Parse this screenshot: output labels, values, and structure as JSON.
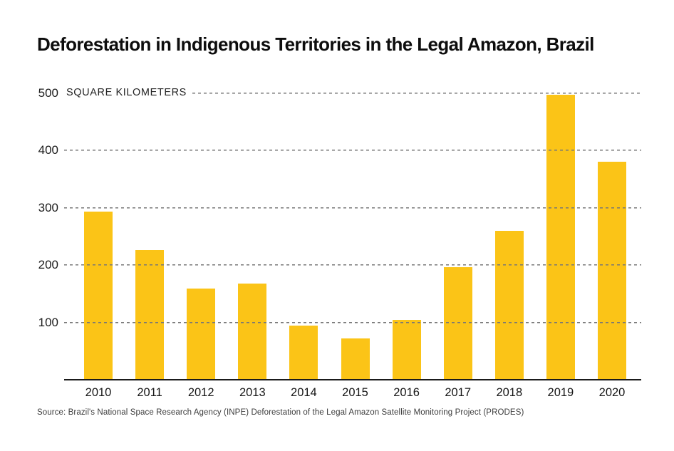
{
  "source": "Source: Brazil's National Space Research Agency (INPE) Deforestation of the Legal Amazon Satellite Monitoring Project (PRODES)",
  "colors": {
    "bar": "#FBC417",
    "gridline": "#767676",
    "axis_line": "#1a1a1a",
    "title_text": "#0d0d0d",
    "tick_text": "#1c1c1c",
    "source_text": "#3c3c3c",
    "background": "#ffffff"
  },
  "chart_data": {
    "type": "bar",
    "title": "Deforestation in Indigenous Territories in the Legal Amazon, Brazil",
    "categories": [
      "2010",
      "2011",
      "2012",
      "2013",
      "2014",
      "2015",
      "2016",
      "2017",
      "2018",
      "2019",
      "2020"
    ],
    "values": [
      294,
      226,
      159,
      168,
      95,
      72,
      105,
      197,
      260,
      497,
      380
    ],
    "xlabel": "",
    "ylabel": "SQUARE KILOMETERS",
    "ylim": [
      0,
      500
    ],
    "yticks": [
      100,
      200,
      300,
      400,
      500
    ],
    "grid": "horizontal-dashed-over-bars",
    "legend": "none"
  }
}
